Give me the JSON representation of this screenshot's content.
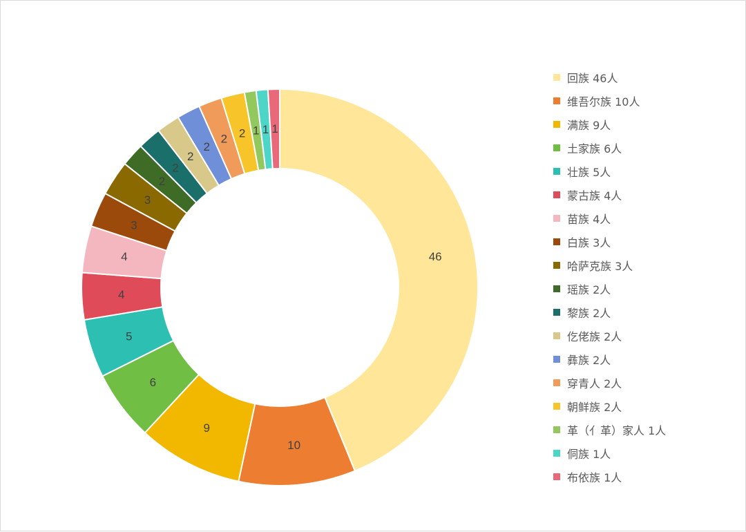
{
  "chart_data": {
    "type": "pie",
    "donut": true,
    "legend_position": "right",
    "categories": [
      "回族 46人",
      "维吾尔族 10人",
      "满族 9人",
      "土家族 6人",
      "壮族 5人",
      "蒙古族 4人",
      "苗族 4人",
      "白族 3人",
      "哈萨克族 3人",
      "瑶族 2人",
      "黎族 2人",
      "仡佬族 2人",
      "彝族 2人",
      "穿青人 2人",
      "朝鲜族 2人",
      "革（亻革）家人 1人",
      "侗族 1人",
      "布依族 1人"
    ],
    "values": [
      46,
      10,
      9,
      6,
      5,
      4,
      4,
      3,
      3,
      2,
      2,
      2,
      2,
      2,
      2,
      1,
      1,
      1
    ],
    "colors": [
      "#FFE699",
      "#ED7D31",
      "#F2B800",
      "#70BF44",
      "#2EBFB3",
      "#E04B5A",
      "#F4B7C0",
      "#9C4A0B",
      "#8A6A00",
      "#3E6B26",
      "#1B6F6A",
      "#D8C98A",
      "#6F8FD8",
      "#F09B5A",
      "#F7C52A",
      "#92C85E",
      "#4DD6C8",
      "#E86A7A"
    ]
  }
}
